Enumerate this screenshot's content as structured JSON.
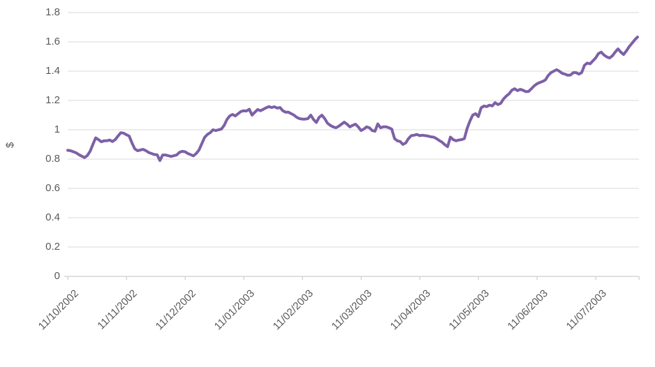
{
  "chart_data": {
    "type": "line",
    "title": "",
    "xlabel": "",
    "ylabel": "$",
    "ylim": [
      0,
      1.8
    ],
    "grid": "horizontal",
    "legend_position": "none",
    "y_tick_labels": [
      "0",
      "0.2",
      "0.4",
      "0.6",
      "0.8",
      "1",
      "1.2",
      "1.4",
      "1.6",
      "1.8"
    ],
    "y_tick_values": [
      0,
      0.2,
      0.4,
      0.6,
      0.8,
      1,
      1.2,
      1.4,
      1.6,
      1.8
    ],
    "x_tick_labels": [
      "11/10/2002",
      "11/11/2002",
      "11/12/2002",
      "11/01/2003",
      "11/02/2003",
      "11/03/2003",
      "11/04/2003",
      "11/05/2003",
      "11/06/2003",
      "11/07/2003"
    ],
    "colors": {
      "series": "#7D60A6",
      "gridline": "#D9D9D9",
      "axis_line": "#D6D6D6",
      "tick_text": "#595959"
    },
    "series": [
      {
        "name": "$",
        "color": "#7D60A6",
        "values": [
          0.86,
          0.857,
          0.85,
          0.843,
          0.83,
          0.82,
          0.81,
          0.824,
          0.853,
          0.9,
          0.945,
          0.933,
          0.918,
          0.925,
          0.925,
          0.93,
          0.92,
          0.933,
          0.957,
          0.98,
          0.977,
          0.966,
          0.957,
          0.91,
          0.87,
          0.857,
          0.862,
          0.866,
          0.857,
          0.845,
          0.838,
          0.831,
          0.83,
          0.79,
          0.828,
          0.828,
          0.823,
          0.818,
          0.823,
          0.828,
          0.846,
          0.853,
          0.85,
          0.838,
          0.83,
          0.822,
          0.838,
          0.862,
          0.905,
          0.948,
          0.968,
          0.98,
          1.0,
          0.995,
          1.0,
          1.005,
          1.03,
          1.07,
          1.095,
          1.105,
          1.095,
          1.11,
          1.125,
          1.13,
          1.128,
          1.14,
          1.1,
          1.12,
          1.138,
          1.13,
          1.14,
          1.15,
          1.158,
          1.152,
          1.157,
          1.148,
          1.152,
          1.13,
          1.12,
          1.12,
          1.11,
          1.1,
          1.085,
          1.076,
          1.073,
          1.073,
          1.076,
          1.1,
          1.07,
          1.05,
          1.085,
          1.1,
          1.076,
          1.045,
          1.03,
          1.02,
          1.014,
          1.024,
          1.038,
          1.052,
          1.038,
          1.02,
          1.03,
          1.038,
          1.02,
          0.995,
          1.005,
          1.02,
          1.014,
          0.995,
          0.99,
          1.04,
          1.014,
          1.02,
          1.02,
          1.014,
          1.005,
          0.94,
          0.925,
          0.92,
          0.9,
          0.91,
          0.94,
          0.96,
          0.963,
          0.968,
          0.96,
          0.963,
          0.96,
          0.957,
          0.952,
          0.95,
          0.94,
          0.927,
          0.915,
          0.898,
          0.885,
          0.95,
          0.933,
          0.925,
          0.93,
          0.933,
          0.94,
          1.01,
          1.06,
          1.1,
          1.11,
          1.09,
          1.15,
          1.162,
          1.158,
          1.168,
          1.163,
          1.185,
          1.172,
          1.18,
          1.21,
          1.23,
          1.245,
          1.27,
          1.28,
          1.267,
          1.276,
          1.27,
          1.26,
          1.262,
          1.28,
          1.3,
          1.314,
          1.323,
          1.33,
          1.34,
          1.37,
          1.39,
          1.4,
          1.41,
          1.4,
          1.385,
          1.38,
          1.372,
          1.374,
          1.39,
          1.39,
          1.38,
          1.39,
          1.44,
          1.455,
          1.45,
          1.47,
          1.49,
          1.52,
          1.53,
          1.51,
          1.497,
          1.49,
          1.505,
          1.53,
          1.552,
          1.53,
          1.514,
          1.538,
          1.567,
          1.59,
          1.614,
          1.633
        ]
      }
    ]
  }
}
